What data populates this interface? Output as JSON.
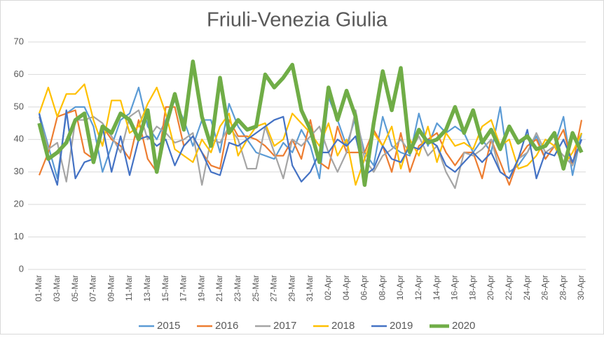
{
  "chart_data": {
    "type": "line",
    "title": "Friuli-Venezia Giulia",
    "categories": [
      "01-Mar",
      null,
      "03-Mar",
      null,
      "05-Mar",
      null,
      "07-Mar",
      null,
      "09-Mar",
      null,
      "11-Mar",
      null,
      "13-Mar",
      null,
      "15-Mar",
      null,
      "17-Mar",
      null,
      "19-Mar",
      null,
      "21-Mar",
      null,
      "23-Mar",
      null,
      "25-Mar",
      null,
      "27-Mar",
      null,
      "29-Mar",
      null,
      "31-Mar",
      null,
      "02-Apr",
      null,
      "04-Apr",
      null,
      "06-Apr",
      null,
      "08-Apr",
      null,
      "10-Apr",
      null,
      "12-Apr",
      null,
      "14-Apr",
      null,
      "16-Apr",
      null,
      "18-Apr",
      null,
      "20-Apr",
      null,
      "22-Apr",
      null,
      "24-Apr",
      null,
      "26-Apr",
      null,
      "28-Apr",
      null,
      "30-Apr"
    ],
    "series": [
      {
        "name": "2015",
        "color": "#5b9bd5",
        "values": [
          48,
          38,
          28,
          48,
          50,
          50,
          44,
          30,
          38,
          46,
          48,
          56,
          44,
          40,
          46,
          52,
          46,
          38,
          46,
          46,
          36,
          51,
          44,
          40,
          36,
          35,
          34,
          39,
          36,
          43,
          38,
          28,
          53,
          46,
          38,
          47,
          36,
          32,
          47,
          38,
          36,
          35,
          48,
          38,
          45,
          42,
          44,
          42,
          36,
          40,
          36,
          50,
          30,
          32,
          36,
          41,
          34,
          38,
          47,
          29,
          42
        ]
      },
      {
        "name": "2016",
        "color": "#ed7d31",
        "values": [
          29,
          36,
          47,
          48,
          49,
          36,
          34,
          44,
          40,
          38,
          34,
          46,
          34,
          30,
          50,
          50,
          38,
          41,
          36,
          32,
          31,
          46,
          41,
          41,
          40,
          38,
          35,
          35,
          40,
          34,
          46,
          33,
          31,
          44,
          36,
          36,
          36,
          43,
          38,
          30,
          42,
          30,
          38,
          40,
          42,
          36,
          32,
          36,
          36,
          28,
          40,
          33,
          26,
          34,
          38,
          40,
          34,
          38,
          43,
          32,
          46
        ]
      },
      {
        "name": "2017",
        "color": "#a5a5a5",
        "values": [
          47,
          37,
          39,
          27,
          46,
          46,
          47,
          45,
          41,
          36,
          47,
          49,
          40,
          44,
          42,
          39,
          40,
          42,
          26,
          40,
          39,
          44,
          40,
          31,
          31,
          44,
          36,
          28,
          40,
          38,
          41,
          44,
          36,
          30,
          36,
          49,
          34,
          30,
          35,
          37,
          40,
          36,
          41,
          35,
          38,
          30,
          25,
          36,
          35,
          37,
          40,
          30,
          28,
          34,
          36,
          42,
          36,
          38,
          35,
          32,
          40
        ]
      },
      {
        "name": "2018",
        "color": "#ffc000",
        "values": [
          48,
          56,
          47,
          54,
          54,
          57,
          46,
          38,
          52,
          52,
          42,
          44,
          51,
          56,
          48,
          37,
          35,
          33,
          40,
          36,
          44,
          48,
          35,
          40,
          44,
          45,
          38,
          40,
          48,
          45,
          42,
          38,
          45,
          35,
          40,
          26,
          34,
          42,
          38,
          44,
          31,
          40,
          35,
          44,
          33,
          42,
          38,
          39,
          37,
          44,
          46,
          38,
          40,
          31,
          32,
          35,
          40,
          38,
          32,
          36,
          42
        ]
      },
      {
        "name": "2019",
        "color": "#4472c4",
        "values": [
          48,
          34,
          26,
          49,
          28,
          33,
          34,
          44,
          30,
          41,
          29,
          40,
          41,
          38,
          40,
          32,
          38,
          41,
          36,
          30,
          29,
          39,
          38,
          40,
          42,
          44,
          46,
          47,
          32,
          27,
          30,
          36,
          36,
          40,
          38,
          41,
          29,
          31,
          38,
          34,
          33,
          38,
          37,
          40,
          38,
          32,
          30,
          33,
          36,
          33,
          36,
          30,
          28,
          34,
          43,
          28,
          36,
          35,
          40,
          33,
          40
        ]
      },
      {
        "name": "2020",
        "color": "#70ad47",
        "values": [
          45,
          34,
          36,
          39,
          46,
          48,
          33,
          44,
          42,
          48,
          46,
          40,
          49,
          30,
          44,
          54,
          43,
          64,
          47,
          38,
          59,
          42,
          46,
          43,
          44,
          60,
          56,
          59,
          63,
          49,
          43,
          33,
          56,
          46,
          55,
          47,
          26,
          45,
          61,
          49,
          62,
          36,
          43,
          39,
          40,
          43,
          50,
          42,
          49,
          39,
          43,
          37,
          44,
          39,
          41,
          37,
          38,
          42,
          31,
          42,
          36
        ]
      }
    ],
    "ylim": [
      0,
      70
    ],
    "yticks": [
      0,
      10,
      20,
      30,
      40,
      50,
      60,
      70
    ],
    "grid": true,
    "legend": "bottom"
  }
}
